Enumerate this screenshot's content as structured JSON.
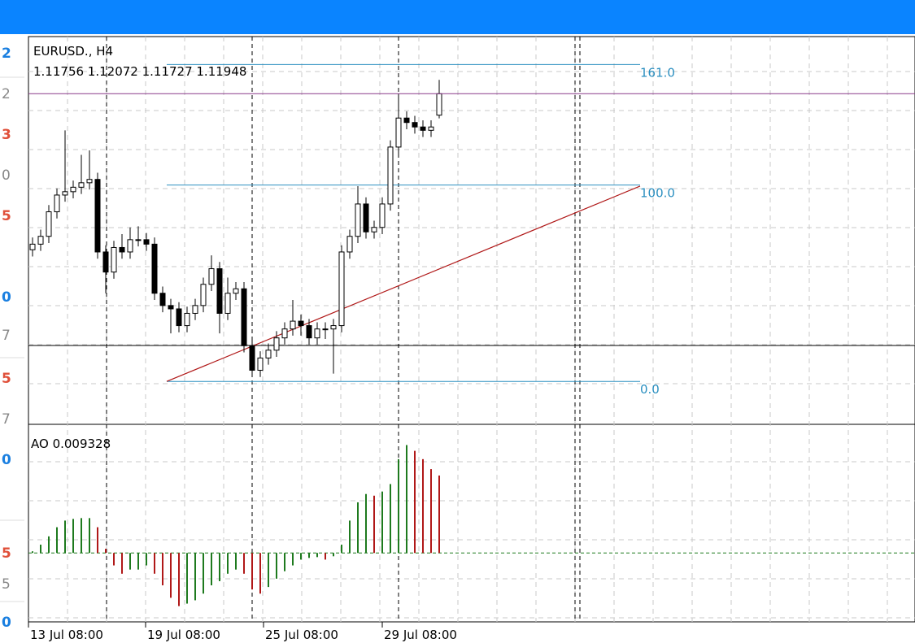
{
  "header": {
    "color": "#0a84ff"
  },
  "left_axis_labels": [
    {
      "text": "2",
      "color": "#1a7fe0"
    },
    {
      "text": "2",
      "color": "#888888"
    },
    {
      "text": "3",
      "color": "#e0503a"
    },
    {
      "text": "0",
      "color": "#888888"
    },
    {
      "text": "5",
      "color": "#e0503a"
    },
    {
      "text": "0",
      "color": "#1a7fe0"
    },
    {
      "text": "7",
      "color": "#888888"
    },
    {
      "text": "5",
      "color": "#e0503a"
    },
    {
      "text": "7",
      "color": "#888888"
    },
    {
      "text": "0",
      "color": "#1a7fe0"
    },
    {
      "text": "5",
      "color": "#e0503a"
    },
    {
      "text": "5",
      "color": "#888888"
    },
    {
      "text": "0",
      "color": "#1a7fe0"
    }
  ],
  "chart_data": [
    {
      "type": "candlestick",
      "title": "EURUSD., H4",
      "ohlc_text": "1.11756 1.12072 1.11727 1.11948",
      "ylim": [
        1.09,
        1.1246
      ],
      "color": "#000000",
      "candles": [
        [
          1.1055,
          1.1066,
          1.1049,
          1.106
        ],
        [
          1.106,
          1.1073,
          1.1054,
          1.1067
        ],
        [
          1.1067,
          1.1095,
          1.1061,
          1.1089
        ],
        [
          1.1089,
          1.111,
          1.1083,
          1.1104
        ],
        [
          1.1104,
          1.1162,
          1.1098,
          1.1107
        ],
        [
          1.1107,
          1.1117,
          1.1101,
          1.1111
        ],
        [
          1.1111,
          1.114,
          1.1105,
          1.1115
        ],
        [
          1.1115,
          1.1144,
          1.1109,
          1.1118
        ],
        [
          1.1118,
          1.1124,
          1.1047,
          1.1053
        ],
        [
          1.1053,
          1.1059,
          1.1016,
          1.1035
        ],
        [
          1.1035,
          1.1063,
          1.1029,
          1.1057
        ],
        [
          1.1057,
          1.1069,
          1.1047,
          1.1053
        ],
        [
          1.1053,
          1.1075,
          1.1047,
          1.1064
        ],
        [
          1.1064,
          1.1076,
          1.1058,
          1.1064
        ],
        [
          1.1064,
          1.107,
          1.1054,
          1.106
        ],
        [
          1.106,
          1.1066,
          1.101,
          1.1016
        ],
        [
          1.1016,
          1.1022,
          1.0999,
          1.1005
        ],
        [
          1.1005,
          1.1011,
          1.098,
          1.1002
        ],
        [
          1.1002,
          1.1008,
          1.0981,
          1.0987
        ],
        [
          1.0987,
          1.1004,
          1.0981,
          1.0998
        ],
        [
          1.0998,
          1.1011,
          1.0992,
          1.1005
        ],
        [
          1.1005,
          1.103,
          1.0999,
          1.1024
        ],
        [
          1.1024,
          1.105,
          1.1018,
          1.1038
        ],
        [
          1.1038,
          1.1044,
          1.098,
          1.0998
        ],
        [
          1.0998,
          1.103,
          1.0992,
          1.1016
        ],
        [
          1.1016,
          1.1026,
          1.101,
          1.102
        ],
        [
          1.102,
          1.1026,
          1.0963,
          1.0969
        ],
        [
          1.0969,
          1.0975,
          1.0941,
          1.0947
        ],
        [
          1.0947,
          1.0964,
          1.0941,
          1.0958
        ],
        [
          1.0958,
          1.0971,
          1.0952,
          1.0965
        ],
        [
          1.0965,
          1.0982,
          1.0959,
          1.0976
        ],
        [
          1.0976,
          1.099,
          1.097,
          1.0984
        ],
        [
          1.0984,
          1.101,
          1.0978,
          1.0991
        ],
        [
          1.0991,
          1.0997,
          1.0978,
          1.0987
        ],
        [
          1.0987,
          1.0993,
          1.097,
          1.0976
        ],
        [
          1.0976,
          1.099,
          1.097,
          1.0984
        ],
        [
          1.0984,
          1.099,
          1.0975,
          1.0984
        ],
        [
          1.0984,
          1.0993,
          1.0944,
          1.0987
        ],
        [
          1.0987,
          1.1059,
          1.0981,
          1.1053
        ],
        [
          1.1053,
          1.1073,
          1.1047,
          1.1067
        ],
        [
          1.1067,
          1.1112,
          1.1061,
          1.1096
        ],
        [
          1.1096,
          1.1102,
          1.1065,
          1.1071
        ],
        [
          1.1071,
          1.1081,
          1.1065,
          1.1075
        ],
        [
          1.1075,
          1.1102,
          1.1069,
          1.1096
        ],
        [
          1.1096,
          1.1153,
          1.109,
          1.1147
        ],
        [
          1.1147,
          1.1195,
          1.1141,
          1.1173
        ],
        [
          1.1173,
          1.1179,
          1.1163,
          1.1169
        ],
        [
          1.1169,
          1.1175,
          1.1159,
          1.1165
        ],
        [
          1.1165,
          1.1171,
          1.1156,
          1.1162
        ],
        [
          1.1162,
          1.1171,
          1.1156,
          1.1165
        ],
        [
          1.11756,
          1.12072,
          1.11727,
          1.11948
        ]
      ],
      "fib_color": "#2b8fc0",
      "fib_levels": [
        {
          "value": 161,
          "label": "161.0",
          "price": 1.1221
        },
        {
          "value": 100,
          "label": "100.0",
          "price": 1.1113
        },
        {
          "value": 0,
          "label": "0.0",
          "price": 1.0937
        }
      ],
      "trendline": {
        "color": "#b01818",
        "values": [
          1.0937,
          1.1112
        ]
      },
      "bid_line_color": "#8a3a8a"
    },
    {
      "type": "histogram",
      "title": "AO 0.009328",
      "ylim": [
        -0.0083,
        0.0152
      ],
      "up_color": "#1e7a1e",
      "down_color": "#b01818",
      "values": [
        0.0002,
        0.001,
        0.002,
        0.0031,
        0.0039,
        0.0041,
        0.0042,
        0.0042,
        0.0031,
        0.0005,
        -0.0015,
        -0.0025,
        -0.002,
        -0.002,
        -0.0015,
        -0.0025,
        -0.0039,
        -0.0054,
        -0.0064,
        -0.0061,
        -0.0057,
        -0.0049,
        -0.0039,
        -0.0034,
        -0.0025,
        -0.002,
        -0.0025,
        -0.0044,
        -0.0049,
        -0.0041,
        -0.0031,
        -0.0022,
        -0.0015,
        -0.0008,
        -0.0006,
        -0.0005,
        -0.0008,
        -0.0004,
        0.001,
        0.0039,
        0.0061,
        0.0071,
        0.0069,
        0.0074,
        0.0083,
        0.0113,
        0.013,
        0.0123,
        0.0113,
        0.0101,
        0.009328
      ]
    }
  ],
  "x_labels": [
    "13 Jul 08:00",
    "19 Jul 08:00",
    "25 Jul 08:00",
    "29 Jul 08:00"
  ]
}
